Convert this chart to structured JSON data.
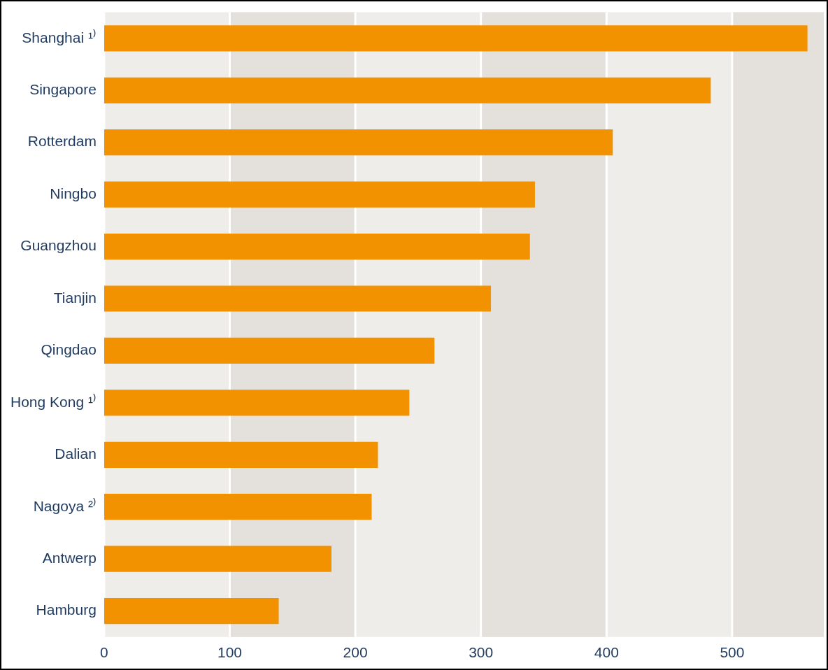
{
  "chart_data": {
    "type": "bar",
    "orientation": "horizontal",
    "categories": [
      "Shanghai ¹⁾",
      "Singapore",
      "Rotterdam",
      "Ningbo",
      "Guangzhou",
      "Tianjin",
      "Qingdao",
      "Hong Kong ¹⁾",
      "Dalian",
      "Nagoya ²⁾",
      "Antwerp",
      "Hamburg"
    ],
    "values": [
      560,
      483,
      405,
      343,
      339,
      308,
      263,
      243,
      218,
      213,
      181,
      139
    ],
    "color": "#f39200",
    "xlim": [
      0,
      573
    ],
    "xticks": [
      0,
      100,
      200,
      300,
      400,
      500
    ],
    "grid": "x",
    "legend": false,
    "bands": [
      {
        "axis": "x",
        "from": 100,
        "to": 200,
        "color": "#e4e1dd"
      },
      {
        "axis": "x",
        "from": 300,
        "to": 400,
        "color": "#e4e1dd"
      },
      {
        "axis": "x",
        "from": 500,
        "to": 573,
        "color": "#e4e1dd"
      }
    ]
  }
}
